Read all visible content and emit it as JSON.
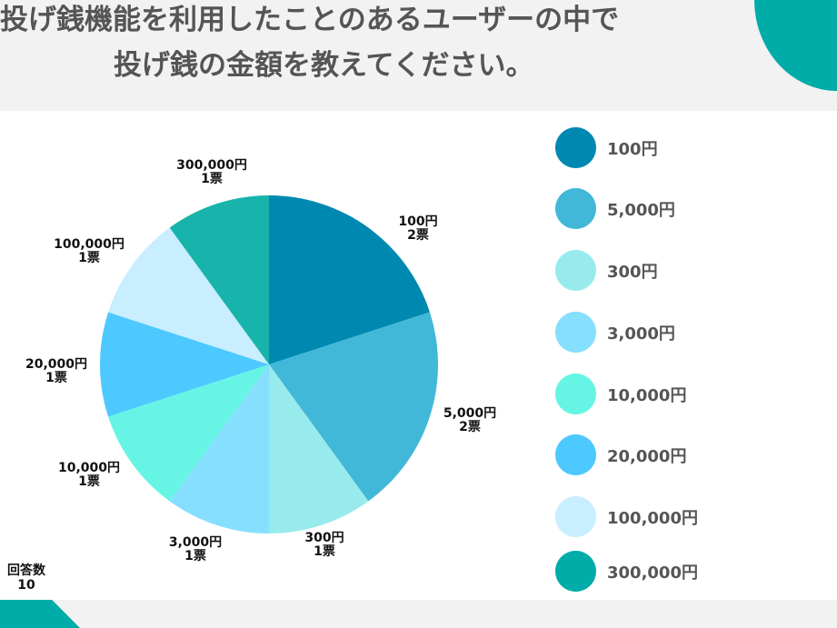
{
  "title": {
    "line1": "投げ銭機能を利用したことのあるユーザーの中で",
    "line2": "投げ銭の金額を教えてください。"
  },
  "total": {
    "label": "回答数",
    "value": "10"
  },
  "chart_data": {
    "type": "pie",
    "title": "投げ銭機能を利用したことのあるユーザーの中で投げ銭の金額を教えてください。",
    "unit": "票",
    "slices": [
      {
        "label": "100円",
        "value": 2,
        "value_label": "2票",
        "color": "#0089b0"
      },
      {
        "label": "5,000円",
        "value": 2,
        "value_label": "2票",
        "color": "#42b8d8"
      },
      {
        "label": "300円",
        "value": 1,
        "value_label": "1票",
        "color": "#98ebed"
      },
      {
        "label": "3,000円",
        "value": 1,
        "value_label": "1票",
        "color": "#86dfff"
      },
      {
        "label": "10,000円",
        "value": 1,
        "value_label": "1票",
        "color": "#66f5e4"
      },
      {
        "label": "20,000円",
        "value": 1,
        "value_label": "1票",
        "color": "#4dc9ff"
      },
      {
        "label": "100,000円",
        "value": 1,
        "value_label": "1票",
        "color": "#c8eeff"
      },
      {
        "label": "300,000円",
        "value": 1,
        "value_label": "1票",
        "color": "#18b3aa"
      }
    ],
    "legend": [
      {
        "label": "100円",
        "color": "#0089b0"
      },
      {
        "label": "5,000円",
        "color": "#42b8d8"
      },
      {
        "label": "300円",
        "color": "#98ebed"
      },
      {
        "label": "3,000円",
        "color": "#86dfff"
      },
      {
        "label": "10,000円",
        "color": "#66f5e4"
      },
      {
        "label": "20,000円",
        "color": "#4dc9ff"
      },
      {
        "label": "100,000円",
        "color": "#c8eeff"
      },
      {
        "label": "300,000円",
        "color": "#00aca8"
      }
    ],
    "legend_position": "right"
  }
}
